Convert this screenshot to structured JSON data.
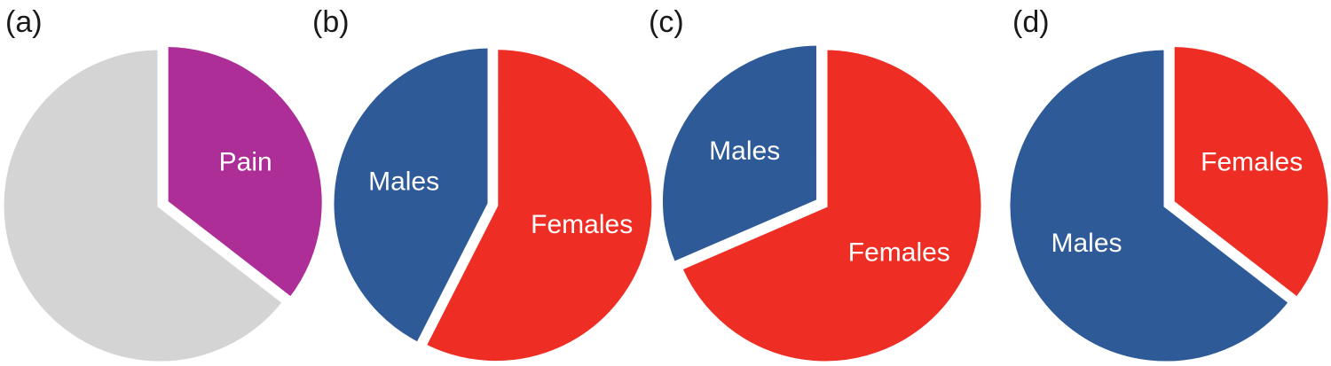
{
  "chart_data": [
    {
      "type": "pie",
      "panel_label": "(a)",
      "categories": [
        "Pain",
        ""
      ],
      "values": [
        0.355,
        0.645
      ],
      "colors": [
        "#ad2e96",
        "#d3d4d3"
      ],
      "labels": [
        "Pain",
        ""
      ],
      "exploded_slice": 0,
      "start_angle_deg": 0,
      "direction": "clockwise"
    },
    {
      "type": "pie",
      "panel_label": "(b)",
      "categories": [
        "Males",
        "Females"
      ],
      "values": [
        0.425,
        0.575
      ],
      "colors": [
        "#2e5b98",
        "#ee2e24"
      ],
      "labels": [
        "Males",
        "Females"
      ],
      "exploded_slice": 1,
      "start_angle_deg": 0,
      "direction": "counterclockwise"
    },
    {
      "type": "pie",
      "panel_label": "(c)",
      "categories": [
        "Males",
        "Females"
      ],
      "values": [
        0.315,
        0.685
      ],
      "colors": [
        "#2e5b98",
        "#ee2e24"
      ],
      "labels": [
        "Males",
        "Females"
      ],
      "exploded_slice": 0,
      "start_angle_deg": 0,
      "direction": "counterclockwise"
    },
    {
      "type": "pie",
      "panel_label": "(d)",
      "categories": [
        "Females",
        "Males"
      ],
      "values": [
        0.355,
        0.645
      ],
      "colors": [
        "#ee2e24",
        "#2e5b98"
      ],
      "labels": [
        "Females",
        "Males"
      ],
      "exploded_slice": 0,
      "start_angle_deg": 0,
      "direction": "clockwise"
    }
  ]
}
